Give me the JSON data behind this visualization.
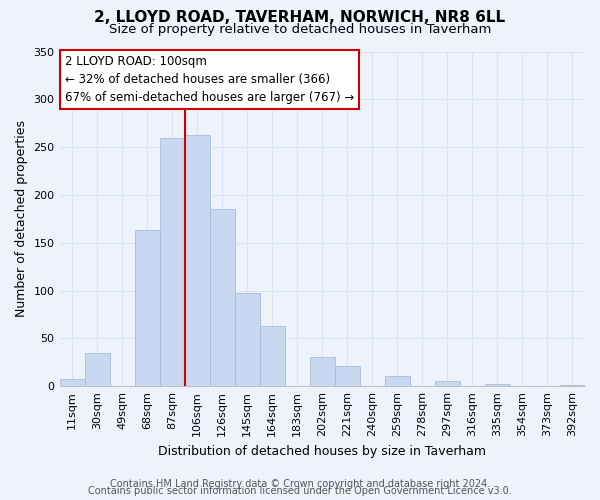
{
  "title": "2, LLOYD ROAD, TAVERHAM, NORWICH, NR8 6LL",
  "subtitle": "Size of property relative to detached houses in Taverham",
  "xlabel": "Distribution of detached houses by size in Taverham",
  "ylabel": "Number of detached properties",
  "bar_color": "#c8d8f0",
  "bar_edge_color": "#a8bcd8",
  "grid_color": "#d8e4f0",
  "categories": [
    "11sqm",
    "30sqm",
    "49sqm",
    "68sqm",
    "87sqm",
    "106sqm",
    "126sqm",
    "145sqm",
    "164sqm",
    "183sqm",
    "202sqm",
    "221sqm",
    "240sqm",
    "259sqm",
    "278sqm",
    "297sqm",
    "316sqm",
    "335sqm",
    "354sqm",
    "373sqm",
    "392sqm"
  ],
  "values": [
    8,
    35,
    0,
    163,
    260,
    263,
    185,
    97,
    63,
    0,
    30,
    21,
    0,
    11,
    0,
    5,
    0,
    2,
    0,
    0,
    1
  ],
  "ylim": [
    0,
    350
  ],
  "yticks": [
    0,
    50,
    100,
    150,
    200,
    250,
    300,
    350
  ],
  "property_line_label": "2 LLOYD ROAD: 100sqm",
  "annotation_line1": "← 32% of detached houses are smaller (366)",
  "annotation_line2": "67% of semi-detached houses are larger (767) →",
  "annotation_box_color": "#ffffff",
  "annotation_box_edge": "#cc0000",
  "property_line_color": "#cc0000",
  "property_line_index": 5,
  "footer_line1": "Contains HM Land Registry data © Crown copyright and database right 2024.",
  "footer_line2": "Contains public sector information licensed under the Open Government Licence v3.0.",
  "title_fontsize": 11,
  "subtitle_fontsize": 9.5,
  "xlabel_fontsize": 9,
  "ylabel_fontsize": 9,
  "tick_fontsize": 8,
  "annotation_fontsize": 8.5,
  "footer_fontsize": 7,
  "background_color": "#eef2fb"
}
